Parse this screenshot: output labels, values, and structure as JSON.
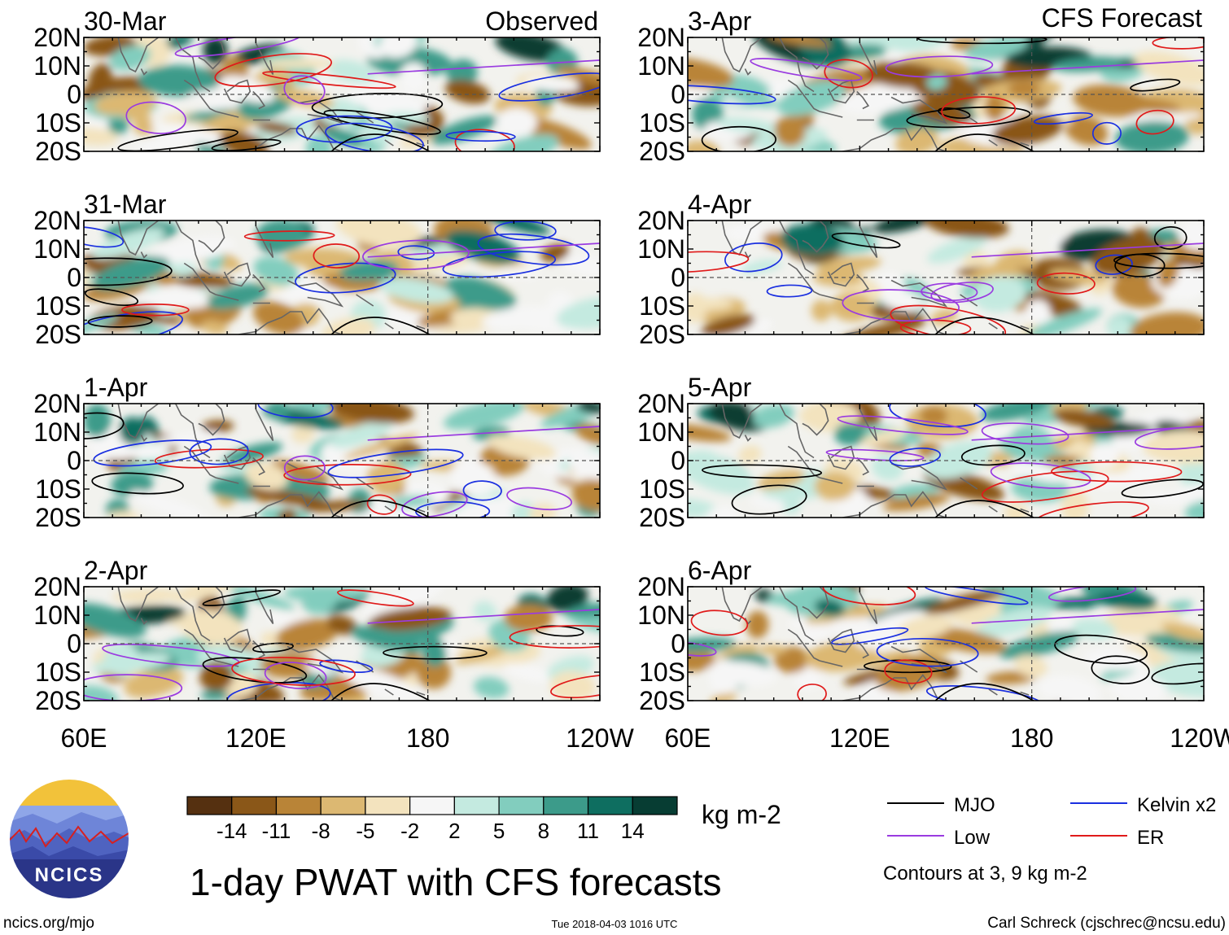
{
  "chart_data": {
    "type": "heatmap",
    "title": "1-day PWAT with CFS forecasts",
    "units": "kg m-2",
    "x_ticks": [
      "60E",
      "120E",
      "180",
      "120W"
    ],
    "y_ticks": [
      "20N",
      "10N",
      "0",
      "10S",
      "20S"
    ],
    "xlim": [
      60,
      240
    ],
    "ylim": [
      -20,
      20
    ],
    "observed_label": "Observed",
    "forecast_label": "CFS Forecast",
    "observed_panels": [
      "30-Mar",
      "31-Mar",
      "1-Apr",
      "2-Apr"
    ],
    "forecast_panels": [
      "3-Apr",
      "4-Apr",
      "5-Apr",
      "6-Apr"
    ],
    "colorbar": {
      "levels": [
        "-14",
        "-11",
        "-8",
        "-5",
        "-2",
        "2",
        "5",
        "8",
        "11",
        "14"
      ],
      "colors": [
        "#553010",
        "#8a5718",
        "#b98437",
        "#dcb872",
        "#f3e3be",
        "#f6f6f6",
        "#c4eae0",
        "#82cdbe",
        "#3c9b8a",
        "#0e6e60",
        "#073d33"
      ]
    },
    "legend": [
      {
        "name": "MJO",
        "color": "#000000"
      },
      {
        "name": "Kelvin x2",
        "color": "#1a2fe0"
      },
      {
        "name": "Low",
        "color": "#9a3be0"
      },
      {
        "name": "ER",
        "color": "#e01a1a"
      }
    ],
    "contour_note": "Contours at 3, 9 kg m-2"
  },
  "footer": {
    "logo_text": "NCICS",
    "site": "ncics.org/mjo",
    "timestamp": "Tue 2018-04-03 1016 UTC",
    "author": "Carl Schreck (cjschrec@ncsu.edu)"
  }
}
